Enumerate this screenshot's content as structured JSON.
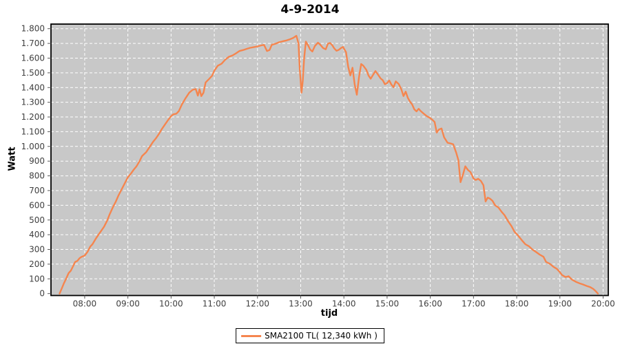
{
  "title": "4-9-2014",
  "colors": {
    "series": "#F5854E",
    "plot_bg": "#C8C8C8",
    "grid": "#FFFFFF",
    "plot_border": "#000000",
    "tick_text": "#3F3F3F",
    "tick_mark": "#555555"
  },
  "legend": {
    "label": "SMA2100 TL( 12,340 kWh )"
  },
  "chart_data": {
    "type": "line",
    "title": "4-9-2014",
    "xlabel": "tijd",
    "ylabel": "Watt",
    "grid": true,
    "legend_position": "bottom",
    "xlim": [
      7.22,
      20.12
    ],
    "ylim": [
      0,
      1800
    ],
    "x_tick_values": [
      8,
      9,
      10,
      11,
      12,
      13,
      14,
      15,
      16,
      17,
      18,
      19,
      20
    ],
    "x_tick_labels": [
      "08:00",
      "09:00",
      "10:00",
      "11:00",
      "12:00",
      "13:00",
      "14:00",
      "15:00",
      "16:00",
      "17:00",
      "18:00",
      "19:00",
      "20:00"
    ],
    "y_tick_values": [
      0,
      100,
      200,
      300,
      400,
      500,
      600,
      700,
      800,
      900,
      1000,
      1100,
      1200,
      1300,
      1400,
      1500,
      1600,
      1700,
      1800
    ],
    "y_tick_labels": [
      "0",
      "100",
      "200",
      "300",
      "400",
      "500",
      "600",
      "700",
      "800",
      "900",
      "1.000",
      "1.100",
      "1.200",
      "1.300",
      "1.400",
      "1.500",
      "1.600",
      "1.700",
      "1.800"
    ],
    "series": [
      {
        "name": "SMA2100 TL( 12,340 kWh )",
        "color": "#F5854E",
        "points": [
          [
            7.42,
            0
          ],
          [
            7.47,
            35
          ],
          [
            7.52,
            70
          ],
          [
            7.57,
            100
          ],
          [
            7.63,
            140
          ],
          [
            7.68,
            155
          ],
          [
            7.73,
            185
          ],
          [
            7.78,
            215
          ],
          [
            7.83,
            222
          ],
          [
            7.88,
            240
          ],
          [
            7.93,
            250
          ],
          [
            8.0,
            258
          ],
          [
            8.07,
            285
          ],
          [
            8.13,
            320
          ],
          [
            8.18,
            335
          ],
          [
            8.25,
            370
          ],
          [
            8.32,
            400
          ],
          [
            8.38,
            425
          ],
          [
            8.45,
            455
          ],
          [
            8.52,
            495
          ],
          [
            8.58,
            540
          ],
          [
            8.65,
            585
          ],
          [
            8.72,
            625
          ],
          [
            8.78,
            665
          ],
          [
            8.85,
            705
          ],
          [
            8.92,
            745
          ],
          [
            9.0,
            790
          ],
          [
            9.07,
            815
          ],
          [
            9.13,
            840
          ],
          [
            9.2,
            865
          ],
          [
            9.27,
            900
          ],
          [
            9.33,
            935
          ],
          [
            9.42,
            960
          ],
          [
            9.5,
            995
          ],
          [
            9.58,
            1030
          ],
          [
            9.65,
            1055
          ],
          [
            9.72,
            1085
          ],
          [
            9.78,
            1115
          ],
          [
            9.85,
            1145
          ],
          [
            9.92,
            1175
          ],
          [
            10.0,
            1205
          ],
          [
            10.05,
            1218
          ],
          [
            10.12,
            1222
          ],
          [
            10.18,
            1240
          ],
          [
            10.25,
            1285
          ],
          [
            10.33,
            1325
          ],
          [
            10.42,
            1365
          ],
          [
            10.5,
            1385
          ],
          [
            10.57,
            1390
          ],
          [
            10.62,
            1345
          ],
          [
            10.66,
            1388
          ],
          [
            10.7,
            1342
          ],
          [
            10.75,
            1365
          ],
          [
            10.8,
            1435
          ],
          [
            10.88,
            1458
          ],
          [
            10.95,
            1480
          ],
          [
            11.0,
            1515
          ],
          [
            11.08,
            1548
          ],
          [
            11.17,
            1562
          ],
          [
            11.25,
            1588
          ],
          [
            11.33,
            1608
          ],
          [
            11.42,
            1618
          ],
          [
            11.5,
            1632
          ],
          [
            11.58,
            1648
          ],
          [
            11.67,
            1655
          ],
          [
            11.75,
            1663
          ],
          [
            11.83,
            1670
          ],
          [
            11.92,
            1675
          ],
          [
            12.0,
            1680
          ],
          [
            12.08,
            1686
          ],
          [
            12.15,
            1690
          ],
          [
            12.22,
            1648
          ],
          [
            12.28,
            1655
          ],
          [
            12.33,
            1690
          ],
          [
            12.42,
            1698
          ],
          [
            12.5,
            1708
          ],
          [
            12.58,
            1714
          ],
          [
            12.67,
            1720
          ],
          [
            12.75,
            1728
          ],
          [
            12.83,
            1738
          ],
          [
            12.9,
            1752
          ],
          [
            12.95,
            1700
          ],
          [
            12.98,
            1520
          ],
          [
            13.02,
            1365
          ],
          [
            13.05,
            1450
          ],
          [
            13.08,
            1600
          ],
          [
            13.12,
            1712
          ],
          [
            13.17,
            1688
          ],
          [
            13.22,
            1658
          ],
          [
            13.27,
            1645
          ],
          [
            13.33,
            1683
          ],
          [
            13.4,
            1705
          ],
          [
            13.45,
            1692
          ],
          [
            13.52,
            1668
          ],
          [
            13.58,
            1660
          ],
          [
            13.63,
            1698
          ],
          [
            13.68,
            1703
          ],
          [
            13.73,
            1688
          ],
          [
            13.78,
            1665
          ],
          [
            13.83,
            1650
          ],
          [
            13.88,
            1656
          ],
          [
            13.93,
            1668
          ],
          [
            13.98,
            1676
          ],
          [
            14.05,
            1640
          ],
          [
            14.1,
            1540
          ],
          [
            14.15,
            1482
          ],
          [
            14.2,
            1535
          ],
          [
            14.25,
            1420
          ],
          [
            14.3,
            1351
          ],
          [
            14.35,
            1470
          ],
          [
            14.4,
            1560
          ],
          [
            14.45,
            1548
          ],
          [
            14.52,
            1520
          ],
          [
            14.57,
            1482
          ],
          [
            14.62,
            1460
          ],
          [
            14.68,
            1488
          ],
          [
            14.73,
            1512
          ],
          [
            14.78,
            1492
          ],
          [
            14.85,
            1462
          ],
          [
            14.9,
            1450
          ],
          [
            14.95,
            1422
          ],
          [
            15.0,
            1430
          ],
          [
            15.05,
            1448
          ],
          [
            15.1,
            1420
          ],
          [
            15.15,
            1402
          ],
          [
            15.2,
            1442
          ],
          [
            15.27,
            1424
          ],
          [
            15.33,
            1388
          ],
          [
            15.38,
            1342
          ],
          [
            15.43,
            1372
          ],
          [
            15.48,
            1330
          ],
          [
            15.53,
            1305
          ],
          [
            15.58,
            1285
          ],
          [
            15.63,
            1252
          ],
          [
            15.68,
            1238
          ],
          [
            15.73,
            1256
          ],
          [
            15.78,
            1240
          ],
          [
            15.85,
            1222
          ],
          [
            15.92,
            1206
          ],
          [
            16.0,
            1192
          ],
          [
            16.05,
            1180
          ],
          [
            16.1,
            1166
          ],
          [
            16.15,
            1094
          ],
          [
            16.2,
            1115
          ],
          [
            16.26,
            1122
          ],
          [
            16.32,
            1062
          ],
          [
            16.4,
            1025
          ],
          [
            16.47,
            1020
          ],
          [
            16.53,
            1014
          ],
          [
            16.6,
            958
          ],
          [
            16.65,
            907
          ],
          [
            16.7,
            757
          ],
          [
            16.76,
            812
          ],
          [
            16.81,
            865
          ],
          [
            16.87,
            840
          ],
          [
            16.93,
            826
          ],
          [
            17.0,
            782
          ],
          [
            17.05,
            772
          ],
          [
            17.11,
            780
          ],
          [
            17.17,
            766
          ],
          [
            17.23,
            736
          ],
          [
            17.28,
            626
          ],
          [
            17.33,
            652
          ],
          [
            17.38,
            645
          ],
          [
            17.44,
            630
          ],
          [
            17.5,
            600
          ],
          [
            17.58,
            584
          ],
          [
            17.65,
            556
          ],
          [
            17.72,
            532
          ],
          [
            17.8,
            492
          ],
          [
            17.88,
            458
          ],
          [
            17.95,
            420
          ],
          [
            18.03,
            395
          ],
          [
            18.12,
            362
          ],
          [
            18.2,
            335
          ],
          [
            18.28,
            322
          ],
          [
            18.37,
            298
          ],
          [
            18.45,
            282
          ],
          [
            18.53,
            265
          ],
          [
            18.62,
            250
          ],
          [
            18.68,
            215
          ],
          [
            18.77,
            202
          ],
          [
            18.85,
            182
          ],
          [
            18.93,
            168
          ],
          [
            19.0,
            145
          ],
          [
            19.05,
            126
          ],
          [
            19.13,
            112
          ],
          [
            19.2,
            118
          ],
          [
            19.28,
            95
          ],
          [
            19.37,
            80
          ],
          [
            19.45,
            70
          ],
          [
            19.53,
            62
          ],
          [
            19.62,
            52
          ],
          [
            19.7,
            44
          ],
          [
            19.77,
            32
          ],
          [
            19.83,
            16
          ],
          [
            19.88,
            0
          ]
        ]
      }
    ]
  }
}
